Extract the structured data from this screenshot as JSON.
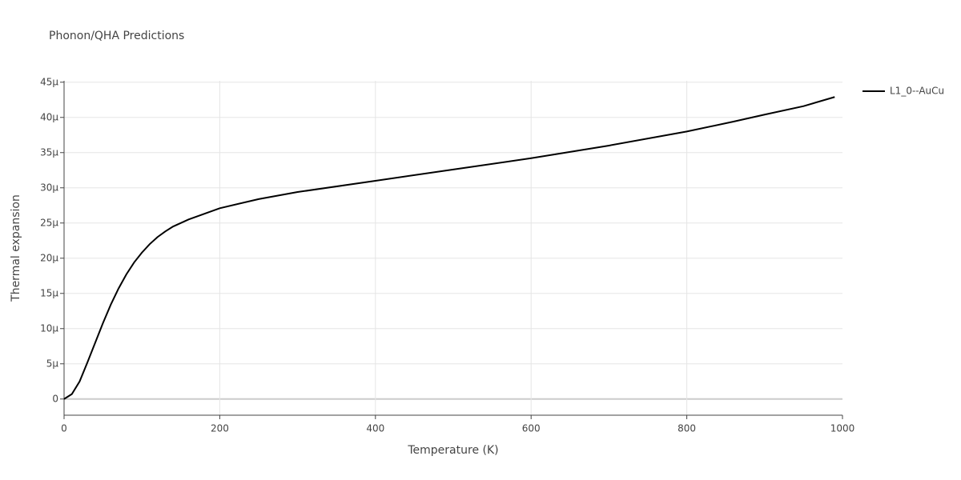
{
  "chart_data": {
    "type": "line",
    "title": "Phonon/QHA Predictions",
    "x_label": "Temperature (K)",
    "y_label": "Thermal expansion",
    "x": [
      0,
      10,
      20,
      30,
      40,
      50,
      60,
      70,
      80,
      90,
      100,
      110,
      120,
      130,
      140,
      160,
      180,
      200,
      250,
      300,
      400,
      500,
      600,
      700,
      800,
      860,
      900,
      950,
      990
    ],
    "series": [
      {
        "name": "L1_0--AuCu",
        "color": "#000000",
        "values": [
          0,
          7e-07,
          2.5e-06,
          5.2e-06,
          8e-06,
          1.08e-05,
          1.34e-05,
          1.57e-05,
          1.77e-05,
          1.94e-05,
          2.08e-05,
          2.2e-05,
          2.3e-05,
          2.38e-05,
          2.45e-05,
          2.55e-05,
          2.63e-05,
          2.71e-05,
          2.84e-05,
          2.94e-05,
          3.1e-05,
          3.26e-05,
          3.42e-05,
          3.6e-05,
          3.8e-05,
          3.94e-05,
          4.04e-05,
          4.16e-05,
          4.29e-05
        ]
      }
    ],
    "xlim": [
      0,
      1000
    ],
    "xticks": [
      0,
      200,
      400,
      600,
      800,
      1000
    ],
    "ylim": [
      -2.3e-06,
      4.52e-05
    ],
    "yticks": [
      0,
      {
        "value": 5e-06,
        "label": "5μ"
      },
      {
        "value": 1e-05,
        "label": "10μ"
      },
      {
        "value": 1.5e-05,
        "label": "15μ"
      },
      {
        "value": 2e-05,
        "label": "20μ"
      },
      {
        "value": 2.5e-05,
        "label": "25μ"
      },
      {
        "value": 3e-05,
        "label": "30μ"
      },
      {
        "value": 3.5e-05,
        "label": "35μ"
      },
      {
        "value": 4e-05,
        "label": "40μ"
      },
      {
        "value": 4.5e-05,
        "label": "45μ"
      }
    ],
    "grid": true,
    "legend": "right"
  }
}
